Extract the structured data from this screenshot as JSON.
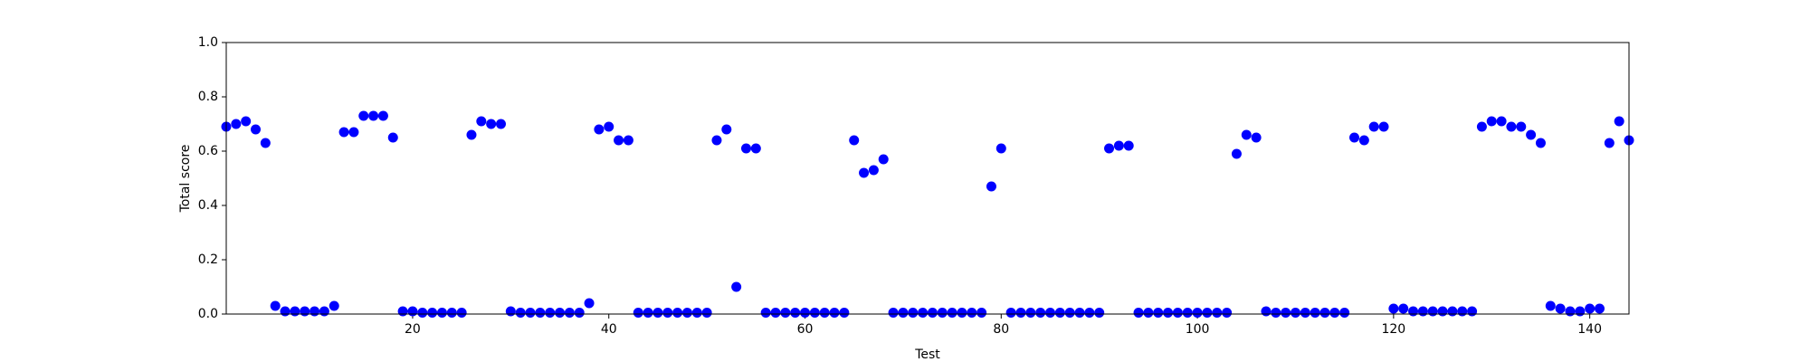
{
  "chart_data": {
    "type": "scatter",
    "xlabel": "Test",
    "ylabel": "Total score",
    "color": "#0000ff",
    "x": [
      1,
      2,
      3,
      4,
      5,
      6,
      7,
      8,
      9,
      10,
      11,
      12,
      13,
      14,
      15,
      16,
      17,
      18,
      19,
      20,
      21,
      22,
      23,
      24,
      25,
      26,
      27,
      28,
      29,
      30,
      31,
      32,
      33,
      34,
      35,
      36,
      37,
      38,
      39,
      40,
      41,
      42,
      43,
      44,
      45,
      46,
      47,
      48,
      49,
      50,
      51,
      52,
      53,
      54,
      55,
      56,
      57,
      58,
      59,
      60,
      61,
      62,
      63,
      64,
      65,
      66,
      67,
      68,
      69,
      70,
      71,
      72,
      73,
      74,
      75,
      76,
      77,
      78,
      79,
      80,
      81,
      82,
      83,
      84,
      85,
      86,
      87,
      88,
      89,
      90,
      91,
      92,
      93,
      94,
      95,
      96,
      97,
      98,
      99,
      100,
      101,
      102,
      103,
      104,
      105,
      106,
      107,
      108,
      109,
      110,
      111,
      112,
      113,
      114,
      115,
      116,
      117,
      118,
      119,
      120,
      121,
      122,
      123,
      124,
      125,
      126,
      127,
      128,
      129,
      130,
      131,
      132,
      133,
      134,
      135,
      136,
      137,
      138,
      139,
      140,
      141,
      142,
      143,
      144
    ],
    "values": [
      0.69,
      0.7,
      0.71,
      0.68,
      0.63,
      0.03,
      0.01,
      0.01,
      0.01,
      0.01,
      0.01,
      0.03,
      0.67,
      0.67,
      0.73,
      0.73,
      0.73,
      0.65,
      0.01,
      0.01,
      0.005,
      0.005,
      0.005,
      0.005,
      0.005,
      0.66,
      0.71,
      0.7,
      0.7,
      0.01,
      0.005,
      0.005,
      0.005,
      0.005,
      0.005,
      0.005,
      0.005,
      0.04,
      0.68,
      0.69,
      0.64,
      0.64,
      0.005,
      0.005,
      0.005,
      0.005,
      0.005,
      0.005,
      0.005,
      0.005,
      0.64,
      0.68,
      0.1,
      0.61,
      0.61,
      0.005,
      0.005,
      0.005,
      0.005,
      0.005,
      0.005,
      0.005,
      0.005,
      0.005,
      0.64,
      0.52,
      0.53,
      0.57,
      0.005,
      0.005,
      0.005,
      0.005,
      0.005,
      0.005,
      0.005,
      0.005,
      0.005,
      0.005,
      0.47,
      0.61,
      0.005,
      0.005,
      0.005,
      0.005,
      0.005,
      0.005,
      0.005,
      0.005,
      0.005,
      0.005,
      0.61,
      0.62,
      0.62,
      0.005,
      0.005,
      0.005,
      0.005,
      0.005,
      0.005,
      0.005,
      0.005,
      0.005,
      0.005,
      0.59,
      0.66,
      0.65,
      0.01,
      0.005,
      0.005,
      0.005,
      0.005,
      0.005,
      0.005,
      0.005,
      0.005,
      0.65,
      0.64,
      0.69,
      0.69,
      0.02,
      0.02,
      0.01,
      0.01,
      0.01,
      0.01,
      0.01,
      0.01,
      0.01,
      0.69,
      0.71,
      0.71,
      0.69,
      0.69,
      0.66,
      0.63,
      0.03,
      0.02,
      0.01,
      0.01,
      0.02,
      0.02,
      0.63,
      0.71,
      0.64
    ],
    "xlim": [
      1,
      144
    ],
    "ylim": [
      0,
      1
    ],
    "xticks": [
      20,
      40,
      60,
      80,
      100,
      120,
      140
    ],
    "yticks": [
      {
        "value": 0,
        "label": "0.0"
      },
      0.2,
      0.4,
      0.6,
      0.8,
      {
        "value": 1,
        "label": "1.0"
      }
    ]
  }
}
